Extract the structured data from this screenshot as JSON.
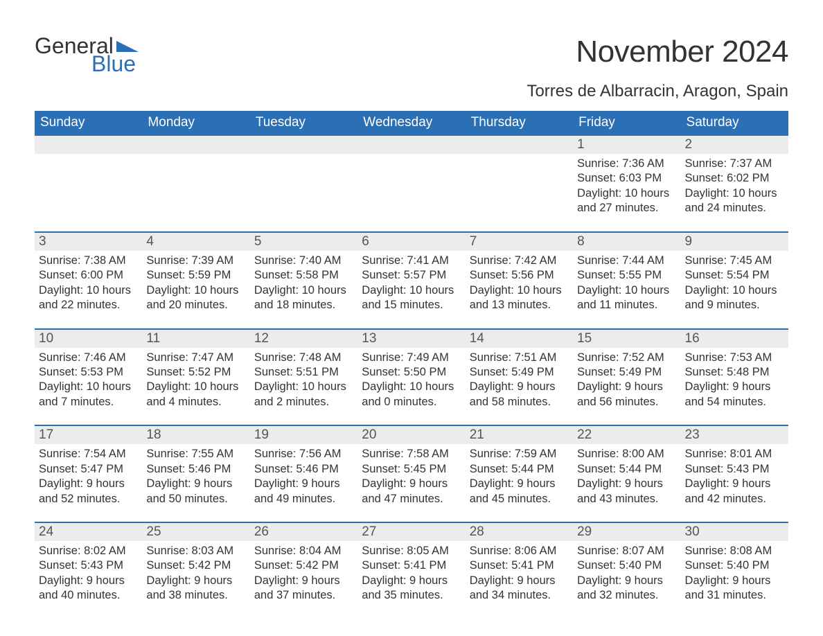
{
  "logo": {
    "word1": "General",
    "word2": "Blue"
  },
  "title": "November 2024",
  "location": "Torres de Albarracin, Aragon, Spain",
  "colors": {
    "accent": "#2b6fb5",
    "header_text": "#ffffff",
    "daynum_bg": "#ececec",
    "body_text": "#333333",
    "muted_text": "#555555",
    "background": "#ffffff"
  },
  "typography": {
    "title_fontsize": 44,
    "location_fontsize": 24,
    "header_fontsize": 19,
    "daynum_fontsize": 19,
    "details_fontsize": 16.5,
    "logo_fontsize": 32
  },
  "day_headers": [
    "Sunday",
    "Monday",
    "Tuesday",
    "Wednesday",
    "Thursday",
    "Friday",
    "Saturday"
  ],
  "weeks": [
    [
      {
        "n": "",
        "sunrise": "",
        "sunset": "",
        "daylight": ""
      },
      {
        "n": "",
        "sunrise": "",
        "sunset": "",
        "daylight": ""
      },
      {
        "n": "",
        "sunrise": "",
        "sunset": "",
        "daylight": ""
      },
      {
        "n": "",
        "sunrise": "",
        "sunset": "",
        "daylight": ""
      },
      {
        "n": "",
        "sunrise": "",
        "sunset": "",
        "daylight": ""
      },
      {
        "n": "1",
        "sunrise": "Sunrise: 7:36 AM",
        "sunset": "Sunset: 6:03 PM",
        "daylight": "Daylight: 10 hours and 27 minutes."
      },
      {
        "n": "2",
        "sunrise": "Sunrise: 7:37 AM",
        "sunset": "Sunset: 6:02 PM",
        "daylight": "Daylight: 10 hours and 24 minutes."
      }
    ],
    [
      {
        "n": "3",
        "sunrise": "Sunrise: 7:38 AM",
        "sunset": "Sunset: 6:00 PM",
        "daylight": "Daylight: 10 hours and 22 minutes."
      },
      {
        "n": "4",
        "sunrise": "Sunrise: 7:39 AM",
        "sunset": "Sunset: 5:59 PM",
        "daylight": "Daylight: 10 hours and 20 minutes."
      },
      {
        "n": "5",
        "sunrise": "Sunrise: 7:40 AM",
        "sunset": "Sunset: 5:58 PM",
        "daylight": "Daylight: 10 hours and 18 minutes."
      },
      {
        "n": "6",
        "sunrise": "Sunrise: 7:41 AM",
        "sunset": "Sunset: 5:57 PM",
        "daylight": "Daylight: 10 hours and 15 minutes."
      },
      {
        "n": "7",
        "sunrise": "Sunrise: 7:42 AM",
        "sunset": "Sunset: 5:56 PM",
        "daylight": "Daylight: 10 hours and 13 minutes."
      },
      {
        "n": "8",
        "sunrise": "Sunrise: 7:44 AM",
        "sunset": "Sunset: 5:55 PM",
        "daylight": "Daylight: 10 hours and 11 minutes."
      },
      {
        "n": "9",
        "sunrise": "Sunrise: 7:45 AM",
        "sunset": "Sunset: 5:54 PM",
        "daylight": "Daylight: 10 hours and 9 minutes."
      }
    ],
    [
      {
        "n": "10",
        "sunrise": "Sunrise: 7:46 AM",
        "sunset": "Sunset: 5:53 PM",
        "daylight": "Daylight: 10 hours and 7 minutes."
      },
      {
        "n": "11",
        "sunrise": "Sunrise: 7:47 AM",
        "sunset": "Sunset: 5:52 PM",
        "daylight": "Daylight: 10 hours and 4 minutes."
      },
      {
        "n": "12",
        "sunrise": "Sunrise: 7:48 AM",
        "sunset": "Sunset: 5:51 PM",
        "daylight": "Daylight: 10 hours and 2 minutes."
      },
      {
        "n": "13",
        "sunrise": "Sunrise: 7:49 AM",
        "sunset": "Sunset: 5:50 PM",
        "daylight": "Daylight: 10 hours and 0 minutes."
      },
      {
        "n": "14",
        "sunrise": "Sunrise: 7:51 AM",
        "sunset": "Sunset: 5:49 PM",
        "daylight": "Daylight: 9 hours and 58 minutes."
      },
      {
        "n": "15",
        "sunrise": "Sunrise: 7:52 AM",
        "sunset": "Sunset: 5:49 PM",
        "daylight": "Daylight: 9 hours and 56 minutes."
      },
      {
        "n": "16",
        "sunrise": "Sunrise: 7:53 AM",
        "sunset": "Sunset: 5:48 PM",
        "daylight": "Daylight: 9 hours and 54 minutes."
      }
    ],
    [
      {
        "n": "17",
        "sunrise": "Sunrise: 7:54 AM",
        "sunset": "Sunset: 5:47 PM",
        "daylight": "Daylight: 9 hours and 52 minutes."
      },
      {
        "n": "18",
        "sunrise": "Sunrise: 7:55 AM",
        "sunset": "Sunset: 5:46 PM",
        "daylight": "Daylight: 9 hours and 50 minutes."
      },
      {
        "n": "19",
        "sunrise": "Sunrise: 7:56 AM",
        "sunset": "Sunset: 5:46 PM",
        "daylight": "Daylight: 9 hours and 49 minutes."
      },
      {
        "n": "20",
        "sunrise": "Sunrise: 7:58 AM",
        "sunset": "Sunset: 5:45 PM",
        "daylight": "Daylight: 9 hours and 47 minutes."
      },
      {
        "n": "21",
        "sunrise": "Sunrise: 7:59 AM",
        "sunset": "Sunset: 5:44 PM",
        "daylight": "Daylight: 9 hours and 45 minutes."
      },
      {
        "n": "22",
        "sunrise": "Sunrise: 8:00 AM",
        "sunset": "Sunset: 5:44 PM",
        "daylight": "Daylight: 9 hours and 43 minutes."
      },
      {
        "n": "23",
        "sunrise": "Sunrise: 8:01 AM",
        "sunset": "Sunset: 5:43 PM",
        "daylight": "Daylight: 9 hours and 42 minutes."
      }
    ],
    [
      {
        "n": "24",
        "sunrise": "Sunrise: 8:02 AM",
        "sunset": "Sunset: 5:43 PM",
        "daylight": "Daylight: 9 hours and 40 minutes."
      },
      {
        "n": "25",
        "sunrise": "Sunrise: 8:03 AM",
        "sunset": "Sunset: 5:42 PM",
        "daylight": "Daylight: 9 hours and 38 minutes."
      },
      {
        "n": "26",
        "sunrise": "Sunrise: 8:04 AM",
        "sunset": "Sunset: 5:42 PM",
        "daylight": "Daylight: 9 hours and 37 minutes."
      },
      {
        "n": "27",
        "sunrise": "Sunrise: 8:05 AM",
        "sunset": "Sunset: 5:41 PM",
        "daylight": "Daylight: 9 hours and 35 minutes."
      },
      {
        "n": "28",
        "sunrise": "Sunrise: 8:06 AM",
        "sunset": "Sunset: 5:41 PM",
        "daylight": "Daylight: 9 hours and 34 minutes."
      },
      {
        "n": "29",
        "sunrise": "Sunrise: 8:07 AM",
        "sunset": "Sunset: 5:40 PM",
        "daylight": "Daylight: 9 hours and 32 minutes."
      },
      {
        "n": "30",
        "sunrise": "Sunrise: 8:08 AM",
        "sunset": "Sunset: 5:40 PM",
        "daylight": "Daylight: 9 hours and 31 minutes."
      }
    ]
  ]
}
